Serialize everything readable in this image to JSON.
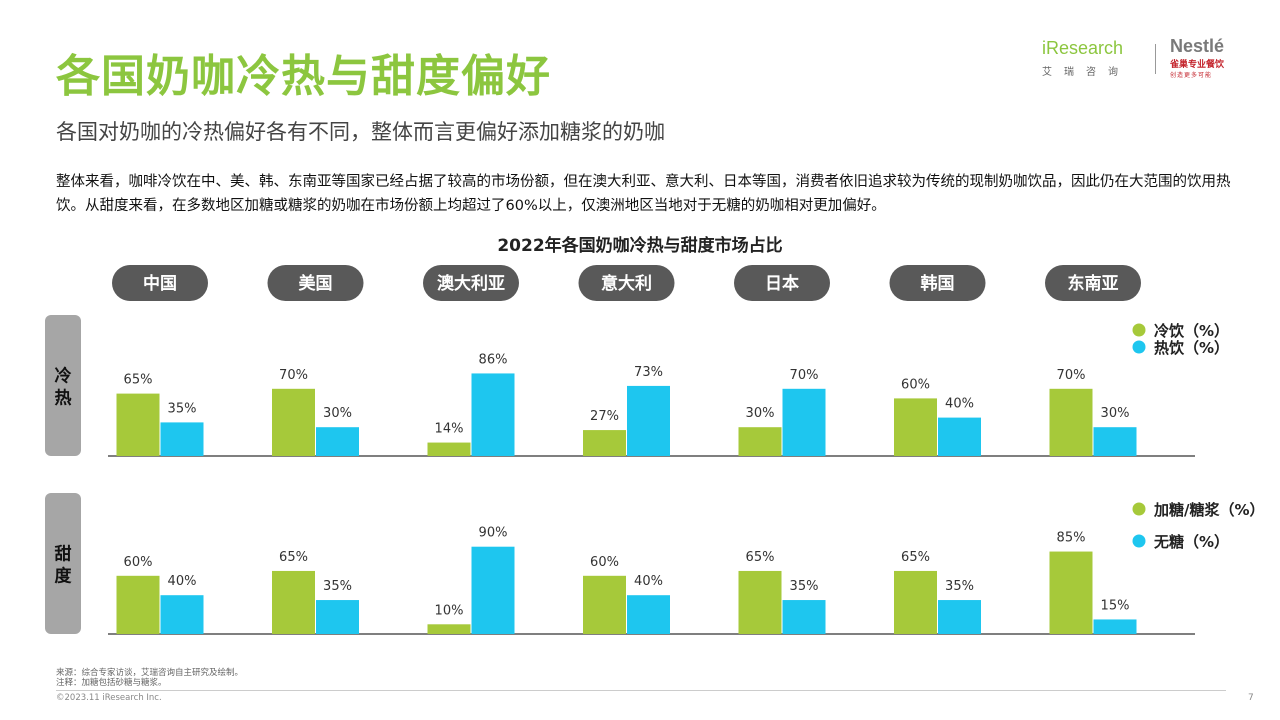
{
  "header": {
    "title": "各国奶咖冷热与甜度偏好",
    "subtitle": "各国对奶咖的冷热偏好各有不同，整体而言更偏好添加糖浆的奶咖",
    "body_text": "整体来看，咖啡冷饮在中、美、韩、东南亚等国家已经占据了较高的市场份额，但在澳大利亚、意大利、日本等国，消费者依旧追求较为传统的现制奶咖饮品，因此仍在大范围的饮用热饮。从甜度来看，在多数地区加糖或糖浆的奶咖在市场份额上均超过了60%以上，仅澳洲地区当地对于无糖的奶咖相对更加偏好。"
  },
  "logos": {
    "iresearch_en": "iResearch",
    "iresearch_cn": "艾瑞咨询",
    "nestle_en": "Nestlé",
    "nestle_cn": "雀巢专业餐饮",
    "nestle_tag": "创造更多可能"
  },
  "chart_data": {
    "type": "bar",
    "title": "2022年各国奶咖冷热与甜度市场占比",
    "categories": [
      "中国",
      "美国",
      "澳大利亚",
      "意大利",
      "日本",
      "韩国",
      "东南亚"
    ],
    "colors": {
      "green": "#a6c93a",
      "blue": "#1ec6ef",
      "pill": "#595959",
      "side": "#a6a6a6"
    },
    "panels": [
      {
        "side_label": "冷热",
        "ylim": [
          0,
          100
        ],
        "series": [
          {
            "name": "冷饮（%）",
            "color": "#a6c93a",
            "values": [
              65,
              70,
              14,
              27,
              30,
              60,
              70
            ]
          },
          {
            "name": "热饮（%）",
            "color": "#1ec6ef",
            "values": [
              35,
              30,
              86,
              73,
              70,
              40,
              30
            ]
          }
        ]
      },
      {
        "side_label": "甜度",
        "ylim": [
          0,
          100
        ],
        "series": [
          {
            "name": "加糖/糖浆（%）",
            "color": "#a6c93a",
            "values": [
              60,
              65,
              10,
              60,
              65,
              65,
              85
            ]
          },
          {
            "name": "无糖（%）",
            "color": "#1ec6ef",
            "values": [
              40,
              35,
              90,
              40,
              35,
              35,
              15
            ]
          }
        ]
      }
    ]
  },
  "footer": {
    "source": "来源：综合专家访谈，艾瑞咨询自主研究及绘制。",
    "note": "注释：加糖包括砂糖与糖浆。",
    "copyright": "©2023.11 iResearch Inc.",
    "page": "7"
  }
}
